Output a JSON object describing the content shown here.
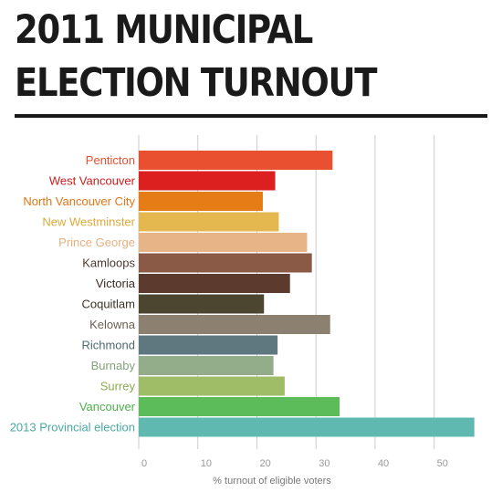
{
  "title_line1": "2011 MUNICIPAL",
  "title_line2": "ELECTION TURNOUT",
  "chart_data": {
    "type": "bar",
    "orientation": "horizontal",
    "xlabel": "% turnout of eligible voters",
    "ylabel": "",
    "xlim": [
      0,
      57
    ],
    "xticks": [
      0,
      10,
      20,
      30,
      40,
      50
    ],
    "grid": true,
    "categories": [
      "Penticton",
      "West Vancouver",
      "North Vancouver City",
      "New Westminster",
      "Prince George",
      "Kamloops",
      "Victoria",
      "Coquitlam",
      "Kelowna",
      "Richmond",
      "Burnaby",
      "Surrey",
      "Vancouver",
      "2013 Provincial election"
    ],
    "values": [
      32.8,
      23.1,
      21.0,
      23.7,
      28.5,
      29.3,
      25.6,
      21.2,
      32.4,
      23.5,
      22.8,
      24.7,
      34.0,
      56.8
    ],
    "colors": [
      "#e8502f",
      "#dc1f1f",
      "#e57c16",
      "#e4b84e",
      "#e7b488",
      "#8b5a47",
      "#5c3a2e",
      "#4c4530",
      "#8c8070",
      "#5f7880",
      "#93ad8b",
      "#9fbc66",
      "#5cbc5a",
      "#5fb9b0"
    ],
    "label_colors": [
      "#e8502f",
      "#cc1c1c",
      "#e27614",
      "#dcaa3c",
      "#e6b080",
      "#4a3a33",
      "#3a2a25",
      "#3a3526",
      "#6a5f52",
      "#4f6870",
      "#86a27c",
      "#8aab50",
      "#4db04a",
      "#4aa9a0"
    ]
  }
}
